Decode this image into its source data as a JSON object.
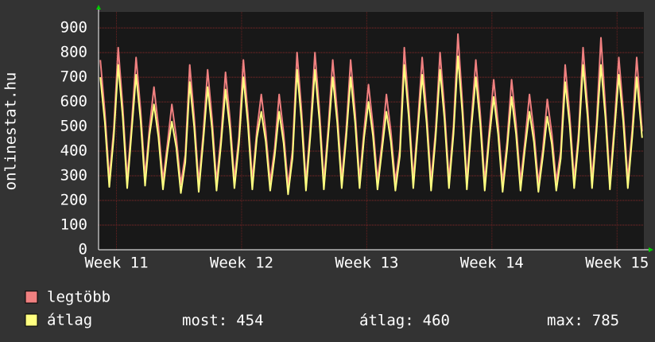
{
  "chart_data": {
    "type": "line",
    "ylabel": "onlinestat.hu",
    "xlim": [
      0,
      30.5
    ],
    "xticks": [
      {
        "value": 1,
        "label": "Week 11"
      },
      {
        "value": 8,
        "label": "Week 12"
      },
      {
        "value": 15,
        "label": "Week 13"
      },
      {
        "value": 22,
        "label": "Week 14"
      },
      {
        "value": 29,
        "label": "Week 15"
      }
    ],
    "ylim": [
      0,
      965
    ],
    "yticks": [
      0,
      100,
      200,
      300,
      400,
      500,
      600,
      700,
      800,
      900
    ],
    "grid": true,
    "x": [
      0.1,
      0.35,
      0.6,
      0.85,
      1.1,
      1.35,
      1.6,
      1.85,
      2.1,
      2.35,
      2.6,
      2.85,
      3.1,
      3.35,
      3.6,
      3.85,
      4.1,
      4.35,
      4.6,
      4.85,
      5.1,
      5.35,
      5.6,
      5.85,
      6.1,
      6.35,
      6.6,
      6.85,
      7.1,
      7.35,
      7.6,
      7.85,
      8.1,
      8.35,
      8.6,
      8.85,
      9.1,
      9.35,
      9.6,
      9.85,
      10.1,
      10.35,
      10.6,
      10.85,
      11.1,
      11.35,
      11.6,
      11.85,
      12.1,
      12.35,
      12.6,
      12.85,
      13.1,
      13.35,
      13.6,
      13.85,
      14.1,
      14.35,
      14.6,
      14.85,
      15.1,
      15.35,
      15.6,
      15.85,
      16.1,
      16.35,
      16.6,
      16.85,
      17.1,
      17.35,
      17.6,
      17.85,
      18.1,
      18.35,
      18.6,
      18.85,
      19.1,
      19.35,
      19.6,
      19.85,
      20.1,
      20.35,
      20.6,
      20.85,
      21.1,
      21.35,
      21.6,
      21.85,
      22.1,
      22.35,
      22.6,
      22.85,
      23.1,
      23.35,
      23.6,
      23.85,
      24.1,
      24.35,
      24.6,
      24.85,
      25.1,
      25.35,
      25.6,
      25.85,
      26.1,
      26.35,
      26.6,
      26.85,
      27.1,
      27.35,
      27.6,
      27.85,
      28.1,
      28.35,
      28.6,
      28.85,
      29.1,
      29.35,
      29.6,
      29.85,
      30.1,
      30.4
    ],
    "series": [
      {
        "name": "legtöbb",
        "color": "#f08080",
        "values": [
          770,
          558,
          290,
          488,
          820,
          580,
          285,
          510,
          780,
          565,
          295,
          495,
          660,
          498,
          280,
          428,
          590,
          455,
          265,
          385,
          750,
          538,
          270,
          468,
          730,
          530,
          275,
          460,
          720,
          530,
          285,
          460,
          770,
          553,
          280,
          483,
          630,
          480,
          275,
          410,
          630,
          473,
          260,
          403,
          800,
          565,
          275,
          495,
          800,
          568,
          280,
          498,
          770,
          555,
          285,
          485,
          770,
          555,
          285,
          485,
          670,
          503,
          280,
          433,
          630,
          480,
          275,
          410,
          820,
          580,
          285,
          510,
          780,
          555,
          275,
          485,
          800,
          570,
          285,
          500,
          875,
          595,
          280,
          525,
          770,
          550,
          275,
          480,
          690,
          508,
          270,
          438,
          690,
          510,
          275,
          440,
          630,
          478,
          270,
          408,
          610,
          470,
          275,
          400,
          750,
          545,
          285,
          475,
          820,
          580,
          285,
          510,
          860,
          578,
          280,
          508,
          780,
          560,
          285,
          490,
          780,
          480
        ]
      },
      {
        "name": "átlag",
        "color": "#ffff80",
        "values": [
          700,
          518,
          255,
          458,
          750,
          540,
          250,
          480,
          710,
          525,
          260,
          465,
          590,
          458,
          245,
          398,
          520,
          415,
          230,
          355,
          680,
          498,
          235,
          438,
          660,
          490,
          240,
          430,
          650,
          490,
          250,
          430,
          700,
          513,
          245,
          453,
          560,
          440,
          240,
          380,
          560,
          433,
          225,
          373,
          730,
          525,
          240,
          465,
          730,
          528,
          245,
          468,
          700,
          515,
          250,
          455,
          700,
          515,
          250,
          455,
          600,
          463,
          245,
          403,
          560,
          440,
          240,
          380,
          750,
          540,
          250,
          480,
          710,
          515,
          240,
          455,
          730,
          530,
          250,
          470,
          785,
          555,
          245,
          495,
          700,
          510,
          240,
          450,
          620,
          468,
          235,
          408,
          620,
          470,
          240,
          410,
          560,
          438,
          235,
          378,
          540,
          430,
          240,
          370,
          680,
          505,
          250,
          445,
          750,
          540,
          250,
          480,
          750,
          538,
          245,
          478,
          710,
          520,
          250,
          460,
          700,
          454
        ]
      }
    ],
    "stats": {
      "labels": [
        "most:",
        "átlag:",
        "max:"
      ],
      "values": [
        454,
        460,
        785
      ]
    }
  }
}
